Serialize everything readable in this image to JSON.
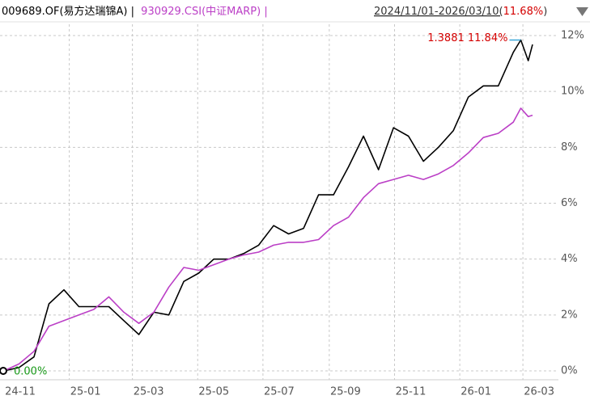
{
  "chart_data": {
    "type": "line",
    "header": {
      "fund": "009689.OF(易方达瑞锦A) |",
      "index": "930929.CSI(中证MARP) |",
      "range": "2024/11/01-2026/03/10(",
      "return": "11.68%",
      "close": ")"
    },
    "x": [
      "2024-11-01",
      "2024-11-15",
      "2024-11-29",
      "2024-12-13",
      "2024-12-27",
      "2025-01-10",
      "2025-01-24",
      "2025-02-07",
      "2025-02-21",
      "2025-03-07",
      "2025-03-21",
      "2025-04-04",
      "2025-04-18",
      "2025-05-02",
      "2025-05-16",
      "2025-05-30",
      "2025-06-13",
      "2025-06-27",
      "2025-07-11",
      "2025-07-25",
      "2025-08-08",
      "2025-08-22",
      "2025-09-05",
      "2025-09-19",
      "2025-10-03",
      "2025-10-17",
      "2025-10-31",
      "2025-11-14",
      "2025-11-28",
      "2025-12-12",
      "2025-12-26",
      "2026-01-09",
      "2026-01-23",
      "2026-02-06",
      "2026-02-20",
      "2026-02-27",
      "2026-03-06",
      "2026-03-10"
    ],
    "series": [
      {
        "name": "009689.OF",
        "color": "#000000",
        "values": [
          0,
          0.12,
          0.5,
          2.4,
          2.9,
          2.3,
          2.3,
          2.3,
          1.8,
          1.3,
          2.1,
          2.0,
          3.2,
          3.5,
          4.0,
          4.0,
          4.2,
          4.5,
          5.2,
          4.9,
          5.1,
          6.3,
          6.3,
          7.3,
          8.4,
          7.2,
          8.7,
          8.4,
          7.5,
          8.0,
          8.6,
          9.8,
          10.2,
          10.2,
          11.4,
          11.84,
          11.1,
          11.68
        ]
      },
      {
        "name": "930929.CSI",
        "color": "#bb3fc6",
        "values": [
          0,
          0.25,
          0.7,
          1.6,
          1.8,
          2.0,
          2.2,
          2.65,
          2.1,
          1.7,
          2.1,
          3.0,
          3.7,
          3.6,
          3.8,
          4.0,
          4.15,
          4.25,
          4.5,
          4.6,
          4.6,
          4.7,
          5.2,
          5.5,
          6.2,
          6.7,
          6.85,
          7.0,
          6.85,
          7.05,
          7.35,
          7.8,
          8.35,
          8.5,
          8.9,
          9.4,
          9.1,
          9.15
        ]
      }
    ],
    "xlim": [
      "2024-11-01",
      "2026-03-10"
    ],
    "xticks": [
      {
        "value": "2024-11-01",
        "label": "24-11"
      },
      {
        "value": "2025-01-01",
        "label": "25-01"
      },
      {
        "value": "2025-03-01",
        "label": "25-03"
      },
      {
        "value": "2025-05-01",
        "label": "25-05"
      },
      {
        "value": "2025-07-01",
        "label": "25-07"
      },
      {
        "value": "2025-09-01",
        "label": "25-09"
      },
      {
        "value": "2025-11-01",
        "label": "25-11"
      },
      {
        "value": "2026-01-01",
        "label": "26-01"
      },
      {
        "value": "2026-03-01",
        "label": "26-03"
      }
    ],
    "ylim": [
      0,
      12
    ],
    "yticks": [
      {
        "value": 0,
        "label": "0%"
      },
      {
        "value": 2,
        "label": "2%"
      },
      {
        "value": 4,
        "label": "4%"
      },
      {
        "value": 6,
        "label": "6%"
      },
      {
        "value": 8,
        "label": "8%"
      },
      {
        "value": 10,
        "label": "10%"
      },
      {
        "value": 12,
        "label": "12%"
      }
    ],
    "grid": true,
    "max_annotation": "1.3881 11.84%",
    "start_annotation": "0.00%"
  }
}
